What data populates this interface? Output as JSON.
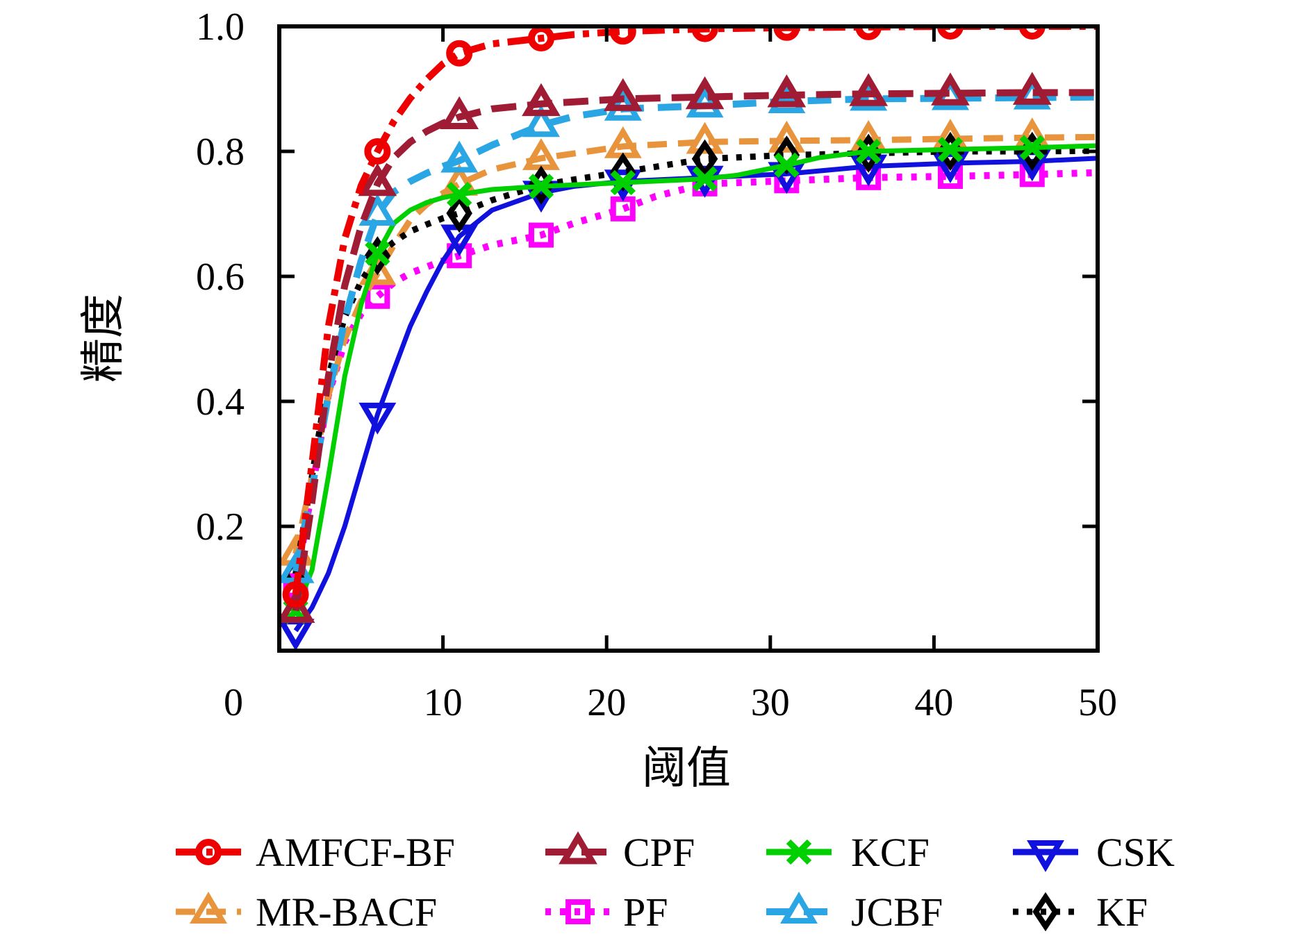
{
  "figure": {
    "background": "#ffffff",
    "frame_color": "#000000"
  },
  "chart_data": {
    "type": "line",
    "title": "",
    "xlabel": "阈值",
    "ylabel": "精度",
    "xlim": [
      0,
      50
    ],
    "ylim": [
      0,
      1.0
    ],
    "grid": false,
    "legend_position": "below-chart, 2 rows x 4 columns",
    "x_ticks": {
      "values": [
        0,
        10,
        20,
        30,
        40,
        50
      ],
      "labels": [
        "0",
        "10",
        "20",
        "30",
        "40",
        "50"
      ]
    },
    "y_ticks": {
      "values": [
        1.0,
        0.8,
        0.6,
        0.4,
        0.2
      ],
      "labels": [
        "1.0",
        "0.8",
        "0.6",
        "0.4",
        "0.2"
      ]
    },
    "markers_at_x": [
      1,
      6,
      11,
      16,
      21,
      26,
      31,
      36,
      41,
      46
    ],
    "draw_order": [
      "PF",
      "CSK",
      "MR-BACF",
      "KF",
      "KCF",
      "JCBF",
      "CPF",
      "AMFCF-BF"
    ],
    "legend_rows": [
      [
        "AMFCF-BF",
        "CPF",
        "KCF",
        "CSK"
      ],
      [
        "MR-BACF",
        "PF",
        "JCBF",
        "KF"
      ]
    ],
    "series": [
      {
        "name": "AMFCF-BF",
        "color": "#ee0000",
        "line": "dash-dot",
        "dash": [
          32,
          12,
          9,
          12
        ],
        "line_width": 10,
        "marker": "circle",
        "marker_stroke": 10,
        "marker_values": {
          "1": 0.091,
          "6": 0.8,
          "11": 0.957,
          "16": 0.981,
          "21": 0.992,
          "26": 0.996,
          "31": 0.998,
          "36": 0.999,
          "41": 1.0,
          "46": 1.0
        },
        "points": [
          [
            1,
            0.091
          ],
          [
            2,
            0.3
          ],
          [
            3,
            0.52
          ],
          [
            4,
            0.66
          ],
          [
            5,
            0.745
          ],
          [
            6,
            0.8
          ],
          [
            7,
            0.848
          ],
          [
            8,
            0.885
          ],
          [
            9,
            0.915
          ],
          [
            10,
            0.94
          ],
          [
            11,
            0.957
          ],
          [
            13,
            0.972
          ],
          [
            16,
            0.981
          ],
          [
            18,
            0.987
          ],
          [
            21,
            0.992
          ],
          [
            26,
            0.996
          ],
          [
            31,
            0.998
          ],
          [
            36,
            0.999
          ],
          [
            41,
            1.0
          ],
          [
            46,
            1.0
          ],
          [
            50,
            1.0
          ]
        ]
      },
      {
        "name": "CPF",
        "color": "#a01c34",
        "line": "long-dash",
        "dash": [
          36,
          16
        ],
        "line_width": 10,
        "marker": "triangle-up",
        "marker_stroke": 9,
        "marker_values": {
          "1": 0.065,
          "6": 0.748,
          "11": 0.855,
          "16": 0.876,
          "21": 0.884,
          "26": 0.887,
          "31": 0.89,
          "36": 0.892,
          "41": 0.893,
          "46": 0.894
        },
        "points": [
          [
            1,
            0.065
          ],
          [
            2,
            0.24
          ],
          [
            3,
            0.44
          ],
          [
            4,
            0.585
          ],
          [
            5,
            0.68
          ],
          [
            6,
            0.748
          ],
          [
            7,
            0.79
          ],
          [
            8,
            0.815
          ],
          [
            9,
            0.832
          ],
          [
            10,
            0.845
          ],
          [
            11,
            0.855
          ],
          [
            13,
            0.868
          ],
          [
            16,
            0.876
          ],
          [
            21,
            0.884
          ],
          [
            26,
            0.887
          ],
          [
            31,
            0.89
          ],
          [
            36,
            0.892
          ],
          [
            41,
            0.893
          ],
          [
            46,
            0.894
          ],
          [
            50,
            0.894
          ]
        ]
      },
      {
        "name": "KCF",
        "color": "#00cf00",
        "line": "solid",
        "dash": [],
        "line_width": 7,
        "marker": "x-cross",
        "marker_stroke": 9,
        "marker_values": {
          "1": 0.064,
          "6": 0.637,
          "11": 0.731,
          "16": 0.744,
          "21": 0.75,
          "26": 0.756,
          "31": 0.778,
          "36": 0.8,
          "41": 0.803,
          "46": 0.806
        },
        "points": [
          [
            1,
            0.064
          ],
          [
            2,
            0.13
          ],
          [
            3,
            0.28
          ],
          [
            4,
            0.44
          ],
          [
            5,
            0.555
          ],
          [
            6,
            0.637
          ],
          [
            7,
            0.685
          ],
          [
            8,
            0.706
          ],
          [
            9,
            0.718
          ],
          [
            10,
            0.726
          ],
          [
            11,
            0.731
          ],
          [
            13,
            0.739
          ],
          [
            16,
            0.744
          ],
          [
            21,
            0.75
          ],
          [
            26,
            0.756
          ],
          [
            28,
            0.762
          ],
          [
            31,
            0.778
          ],
          [
            33,
            0.79
          ],
          [
            36,
            0.8
          ],
          [
            41,
            0.803
          ],
          [
            46,
            0.806
          ],
          [
            50,
            0.809
          ]
        ]
      },
      {
        "name": "CSK",
        "color": "#1111dd",
        "line": "solid",
        "dash": [],
        "line_width": 7,
        "marker": "triangle-down",
        "marker_stroke": 8,
        "marker_values": {
          "1": 0.033,
          "6": 0.379,
          "11": 0.664,
          "16": 0.734,
          "21": 0.752,
          "26": 0.758,
          "31": 0.764,
          "36": 0.776,
          "41": 0.781,
          "46": 0.784
        },
        "points": [
          [
            1,
            0.033
          ],
          [
            2,
            0.07
          ],
          [
            3,
            0.125
          ],
          [
            4,
            0.2
          ],
          [
            5,
            0.29
          ],
          [
            6,
            0.379
          ],
          [
            7,
            0.45
          ],
          [
            8,
            0.52
          ],
          [
            9,
            0.575
          ],
          [
            10,
            0.625
          ],
          [
            11,
            0.664
          ],
          [
            13,
            0.706
          ],
          [
            16,
            0.734
          ],
          [
            18,
            0.744
          ],
          [
            21,
            0.752
          ],
          [
            26,
            0.758
          ],
          [
            31,
            0.764
          ],
          [
            36,
            0.776
          ],
          [
            41,
            0.781
          ],
          [
            46,
            0.784
          ],
          [
            50,
            0.789
          ]
        ]
      },
      {
        "name": "MR-BACF",
        "color": "#e8943c",
        "line": "dash",
        "dash": [
          28,
          16
        ],
        "line_width": 9,
        "marker": "triangle-up",
        "marker_stroke": 8,
        "marker_values": {
          "1": 0.156,
          "6": 0.605,
          "11": 0.748,
          "16": 0.789,
          "21": 0.808,
          "26": 0.815,
          "31": 0.817,
          "36": 0.818,
          "41": 0.82,
          "46": 0.822
        },
        "points": [
          [
            1,
            0.156
          ],
          [
            2,
            0.28
          ],
          [
            3,
            0.41
          ],
          [
            4,
            0.5
          ],
          [
            5,
            0.56
          ],
          [
            6,
            0.605
          ],
          [
            7,
            0.65
          ],
          [
            8,
            0.69
          ],
          [
            9,
            0.715
          ],
          [
            10,
            0.733
          ],
          [
            11,
            0.748
          ],
          [
            13,
            0.771
          ],
          [
            16,
            0.789
          ],
          [
            21,
            0.808
          ],
          [
            26,
            0.815
          ],
          [
            31,
            0.817
          ],
          [
            36,
            0.818
          ],
          [
            41,
            0.82
          ],
          [
            46,
            0.822
          ],
          [
            50,
            0.823
          ]
        ]
      },
      {
        "name": "PF",
        "color": "#ff00ff",
        "line": "dotted",
        "dash": [
          8,
          13
        ],
        "line_width": 10,
        "marker": "square",
        "marker_stroke": 8,
        "marker_values": {
          "1": 0.105,
          "6": 0.568,
          "11": 0.633,
          "16": 0.666,
          "21": 0.708,
          "26": 0.748,
          "31": 0.753,
          "36": 0.758,
          "41": 0.76,
          "46": 0.763
        },
        "points": [
          [
            1,
            0.105
          ],
          [
            2,
            0.26
          ],
          [
            3,
            0.41
          ],
          [
            4,
            0.495
          ],
          [
            5,
            0.54
          ],
          [
            6,
            0.568
          ],
          [
            7,
            0.59
          ],
          [
            8,
            0.605
          ],
          [
            9,
            0.615
          ],
          [
            10,
            0.625
          ],
          [
            11,
            0.633
          ],
          [
            13,
            0.65
          ],
          [
            16,
            0.666
          ],
          [
            18,
            0.685
          ],
          [
            21,
            0.708
          ],
          [
            23,
            0.728
          ],
          [
            26,
            0.748
          ],
          [
            31,
            0.753
          ],
          [
            36,
            0.758
          ],
          [
            41,
            0.76
          ],
          [
            46,
            0.763
          ],
          [
            50,
            0.766
          ]
        ]
      },
      {
        "name": "JCBF",
        "color": "#2aa6e4",
        "line": "dash",
        "dash": [
          34,
          20
        ],
        "line_width": 10,
        "marker": "triangle-up",
        "marker_stroke": 8,
        "marker_values": {
          "1": 0.128,
          "6": 0.7,
          "11": 0.785,
          "16": 0.842,
          "21": 0.868,
          "26": 0.873,
          "31": 0.88,
          "36": 0.884,
          "41": 0.885,
          "46": 0.886
        },
        "points": [
          [
            1,
            0.128
          ],
          [
            2,
            0.26
          ],
          [
            3,
            0.41
          ],
          [
            4,
            0.53
          ],
          [
            5,
            0.625
          ],
          [
            6,
            0.7
          ],
          [
            7,
            0.735
          ],
          [
            8,
            0.752
          ],
          [
            9,
            0.765
          ],
          [
            10,
            0.776
          ],
          [
            11,
            0.785
          ],
          [
            13,
            0.81
          ],
          [
            16,
            0.842
          ],
          [
            18,
            0.856
          ],
          [
            21,
            0.868
          ],
          [
            26,
            0.873
          ],
          [
            31,
            0.88
          ],
          [
            36,
            0.884
          ],
          [
            41,
            0.885
          ],
          [
            46,
            0.886
          ],
          [
            50,
            0.887
          ]
        ]
      },
      {
        "name": "KF",
        "color": "#000000",
        "line": "dotted",
        "dash": [
          8,
          12
        ],
        "line_width": 9,
        "marker": "diamond",
        "marker_stroke": 8,
        "marker_values": {
          "1": 0.124,
          "6": 0.633,
          "11": 0.701,
          "16": 0.746,
          "21": 0.767,
          "26": 0.788,
          "31": 0.794,
          "36": 0.797,
          "41": 0.8,
          "46": 0.8
        },
        "points": [
          [
            1,
            0.124
          ],
          [
            2,
            0.28
          ],
          [
            3,
            0.44
          ],
          [
            4,
            0.535
          ],
          [
            5,
            0.592
          ],
          [
            6,
            0.633
          ],
          [
            7,
            0.655
          ],
          [
            8,
            0.672
          ],
          [
            9,
            0.683
          ],
          [
            10,
            0.693
          ],
          [
            11,
            0.701
          ],
          [
            13,
            0.722
          ],
          [
            16,
            0.746
          ],
          [
            18,
            0.755
          ],
          [
            21,
            0.767
          ],
          [
            26,
            0.788
          ],
          [
            31,
            0.794
          ],
          [
            36,
            0.797
          ],
          [
            41,
            0.8
          ],
          [
            46,
            0.8
          ],
          [
            50,
            0.801
          ]
        ]
      }
    ]
  }
}
